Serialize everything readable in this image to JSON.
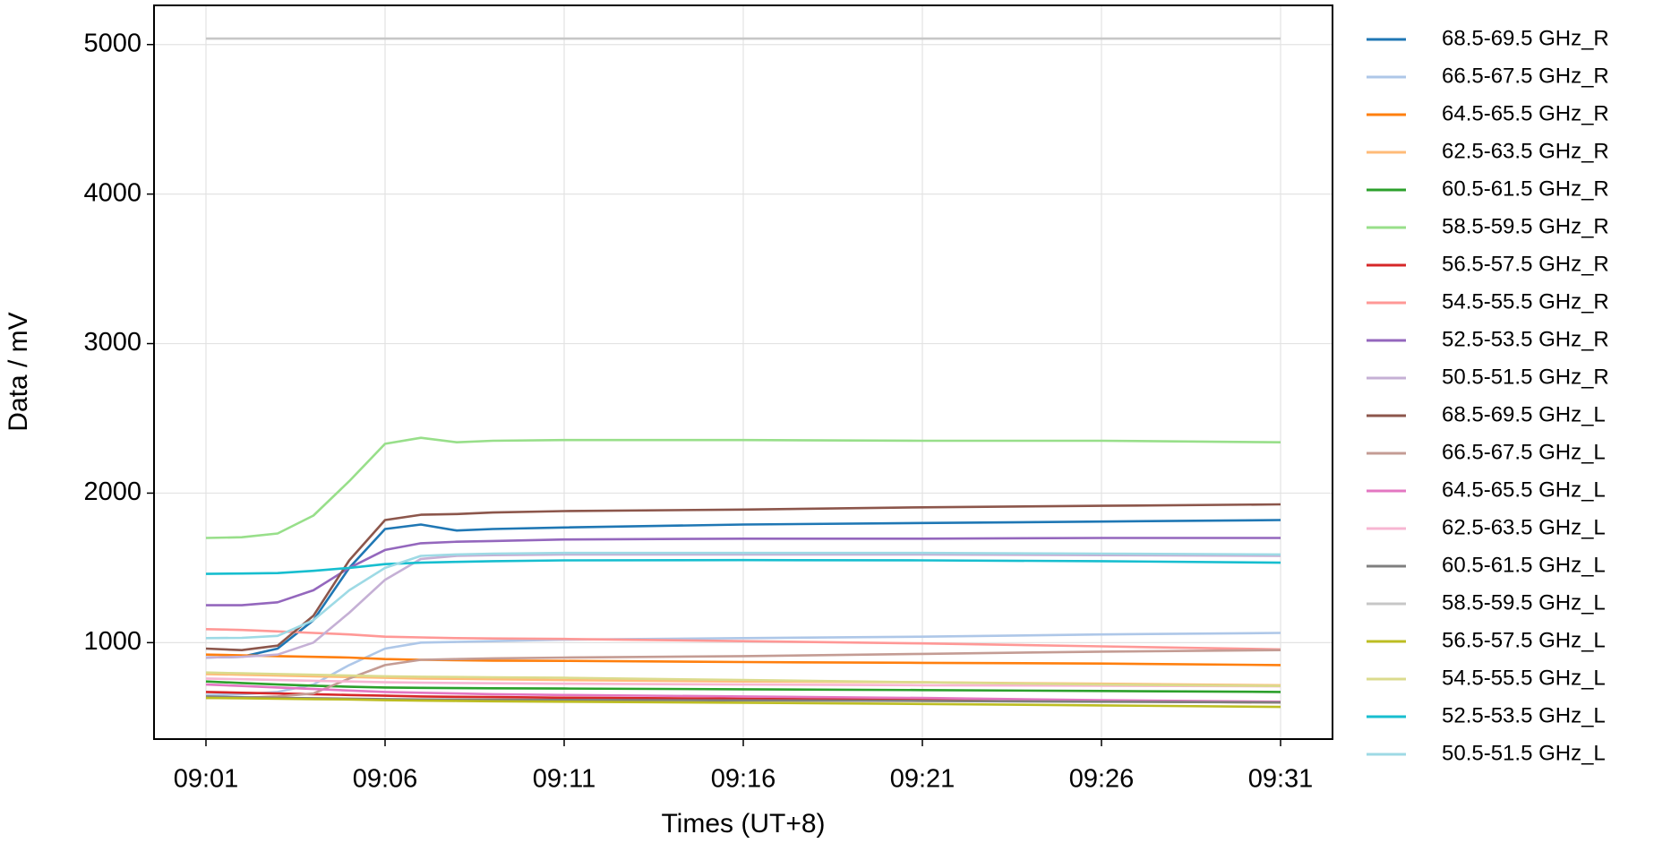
{
  "chart_data": {
    "type": "line",
    "xlabel": "Times (UT+8)",
    "ylabel": "Data / mV",
    "x": [
      "09:01",
      "09:02",
      "09:03",
      "09:04",
      "09:05",
      "09:06",
      "09:07",
      "09:08",
      "09:09",
      "09:11",
      "09:16",
      "09:21",
      "09:26",
      "09:31"
    ],
    "xlim": [
      "08:59:33",
      "09:32:27"
    ],
    "xticks": [
      "09:01",
      "09:06",
      "09:11",
      "09:16",
      "09:21",
      "09:26",
      "09:31"
    ],
    "ylim": [
      355,
      5262
    ],
    "yticks": [
      1000,
      2000,
      3000,
      4000,
      5000
    ],
    "grid": true,
    "legend": "outside-right",
    "series": [
      {
        "name": "68.5-69.5 GHz_R",
        "color": "#1f77b4",
        "values": [
          900,
          905,
          960,
          1150,
          1500,
          1760,
          1790,
          1750,
          1760,
          1770,
          1790,
          1800,
          1810,
          1820
        ]
      },
      {
        "name": "66.5-67.5 GHz_R",
        "color": "#aec7e8",
        "values": [
          650,
          655,
          670,
          720,
          850,
          960,
          1000,
          1005,
          1010,
          1020,
          1030,
          1040,
          1055,
          1065
        ]
      },
      {
        "name": "64.5-65.5 GHz_R",
        "color": "#ff7f0e",
        "values": [
          920,
          915,
          910,
          905,
          900,
          890,
          885,
          882,
          880,
          878,
          870,
          865,
          860,
          850
        ]
      },
      {
        "name": "62.5-63.5 GHz_R",
        "color": "#ffbb78",
        "values": [
          790,
          785,
          780,
          775,
          770,
          765,
          760,
          758,
          755,
          750,
          740,
          735,
          725,
          715
        ]
      },
      {
        "name": "60.5-61.5 GHz_R",
        "color": "#2ca02c",
        "values": [
          740,
          730,
          720,
          712,
          705,
          700,
          698,
          696,
          695,
          693,
          688,
          683,
          677,
          670
        ]
      },
      {
        "name": "58.5-59.5 GHz_R",
        "color": "#98df8a",
        "values": [
          1700,
          1705,
          1730,
          1850,
          2080,
          2330,
          2370,
          2340,
          2350,
          2355,
          2355,
          2350,
          2350,
          2340
        ]
      },
      {
        "name": "56.5-57.5 GHz_R",
        "color": "#d62728",
        "values": [
          670,
          665,
          660,
          655,
          650,
          645,
          640,
          638,
          636,
          632,
          625,
          617,
          608,
          600
        ]
      },
      {
        "name": "54.5-55.5 GHz_R",
        "color": "#ff9896",
        "values": [
          1090,
          1085,
          1075,
          1065,
          1055,
          1040,
          1035,
          1030,
          1028,
          1025,
          1010,
          995,
          975,
          955
        ]
      },
      {
        "name": "52.5-53.5 GHz_R",
        "color": "#9467bd",
        "values": [
          1250,
          1250,
          1270,
          1350,
          1500,
          1620,
          1665,
          1675,
          1680,
          1690,
          1695,
          1695,
          1700,
          1700
        ]
      },
      {
        "name": "50.5-51.5 GHz_R",
        "color": "#c5b0d5",
        "values": [
          900,
          905,
          920,
          1000,
          1200,
          1420,
          1560,
          1580,
          1585,
          1590,
          1590,
          1590,
          1585,
          1580
        ]
      },
      {
        "name": "68.5-69.5 GHz_L",
        "color": "#8c564b",
        "values": [
          960,
          950,
          980,
          1180,
          1550,
          1820,
          1855,
          1860,
          1870,
          1880,
          1890,
          1905,
          1915,
          1925
        ]
      },
      {
        "name": "66.5-67.5 GHz_L",
        "color": "#c49c94",
        "values": [
          630,
          632,
          640,
          660,
          760,
          850,
          885,
          890,
          895,
          900,
          910,
          925,
          940,
          950
        ]
      },
      {
        "name": "64.5-65.5 GHz_L",
        "color": "#e377c2",
        "values": [
          720,
          710,
          700,
          690,
          680,
          670,
          665,
          660,
          655,
          650,
          640,
          630,
          615,
          605
        ]
      },
      {
        "name": "62.5-63.5 GHz_L",
        "color": "#f7b6d2",
        "values": [
          760,
          755,
          750,
          745,
          740,
          735,
          732,
          730,
          728,
          725,
          720,
          715,
          712,
          708
        ]
      },
      {
        "name": "60.5-61.5 GHz_L",
        "color": "#7f7f7f",
        "values": [
          640,
          635,
          630,
          628,
          625,
          622,
          620,
          619,
          618,
          617,
          614,
          610,
          605,
          600
        ]
      },
      {
        "name": "58.5-59.5 GHz_L",
        "color": "#c7c7c7",
        "values": [
          5040,
          5040,
          5040,
          5040,
          5040,
          5040,
          5040,
          5040,
          5040,
          5040,
          5040,
          5040,
          5040,
          5040
        ]
      },
      {
        "name": "56.5-57.5 GHz_L",
        "color": "#bcbd22",
        "values": [
          630,
          628,
          625,
          622,
          620,
          615,
          612,
          610,
          608,
          605,
          598,
          590,
          580,
          570
        ]
      },
      {
        "name": "54.5-55.5 GHz_L",
        "color": "#dbdb8d",
        "values": [
          800,
          795,
          790,
          785,
          780,
          775,
          772,
          770,
          768,
          765,
          750,
          735,
          720,
          710
        ]
      },
      {
        "name": "52.5-53.5 GHz_L",
        "color": "#17becf",
        "values": [
          1460,
          1462,
          1465,
          1480,
          1500,
          1525,
          1535,
          1540,
          1545,
          1550,
          1552,
          1550,
          1545,
          1535
        ]
      },
      {
        "name": "50.5-51.5 GHz_L",
        "color": "#9edae5",
        "values": [
          1030,
          1032,
          1045,
          1150,
          1350,
          1500,
          1580,
          1590,
          1595,
          1600,
          1600,
          1600,
          1595,
          1590
        ]
      }
    ]
  }
}
